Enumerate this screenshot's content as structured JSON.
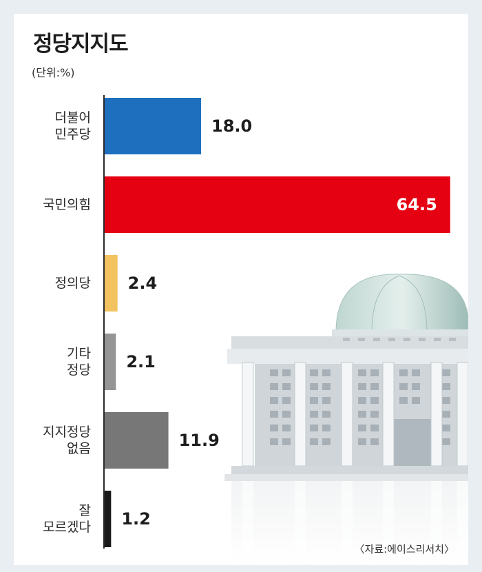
{
  "title": "정당지지도",
  "unit": "(단위:%)",
  "source": "〈자료:에이스리서치〉",
  "chart_data": {
    "type": "bar",
    "orientation": "horizontal",
    "title": "정당지지도",
    "xlabel": "",
    "ylabel": "",
    "xlim": [
      0,
      70
    ],
    "categories": [
      [
        "더불어",
        "민주당"
      ],
      [
        "국민의힘"
      ],
      [
        "정의당"
      ],
      [
        "기타",
        "정당"
      ],
      [
        "지지정당",
        "없음"
      ],
      [
        "잘",
        "모르겠다"
      ]
    ],
    "values": [
      18.0,
      64.5,
      2.4,
      2.1,
      11.9,
      1.2
    ],
    "value_labels": [
      "18.0",
      "64.5",
      "2.4",
      "2.1",
      "11.9",
      "1.2"
    ],
    "colors": [
      "#1f6fbf",
      "#e50012",
      "#f3c35f",
      "#959595",
      "#777777",
      "#1a1a1a"
    ],
    "value_label_inside": [
      false,
      true,
      false,
      false,
      false,
      false
    ],
    "grid": false,
    "legend": "none"
  }
}
